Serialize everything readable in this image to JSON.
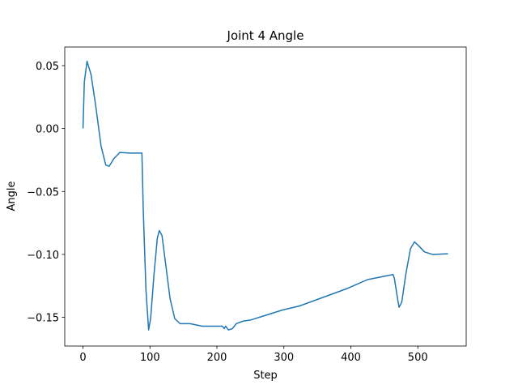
{
  "chart_data": {
    "type": "line",
    "title": "Joint 4 Angle",
    "x_label": "Step",
    "y_label": "Angle",
    "x": [
      0,
      2,
      6,
      12,
      19,
      27,
      34,
      39,
      46,
      55,
      70,
      88,
      90,
      94,
      98,
      101,
      106,
      111,
      114,
      118,
      124,
      130,
      137,
      145,
      160,
      178,
      208,
      211,
      213,
      217,
      223,
      229,
      239,
      251,
      275,
      299,
      323,
      359,
      395,
      425,
      463,
      465,
      470,
      472,
      476,
      482,
      489,
      495,
      501,
      510,
      522,
      545
    ],
    "series": [
      {
        "name": "Joint 4 Angle",
        "color": "#1f77b4",
        "values": [
          0,
          0.037,
          0.0535,
          0.043,
          0.018,
          -0.014,
          -0.029,
          -0.03,
          -0.024,
          -0.019,
          -0.0195,
          -0.0195,
          -0.065,
          -0.128,
          -0.16,
          -0.151,
          -0.116,
          -0.087,
          -0.081,
          -0.085,
          -0.11,
          -0.135,
          -0.151,
          -0.155,
          -0.155,
          -0.157,
          -0.157,
          -0.159,
          -0.157,
          -0.16,
          -0.159,
          -0.155,
          -0.153,
          -0.152,
          -0.148,
          -0.144,
          -0.141,
          -0.134,
          -0.127,
          -0.12,
          -0.116,
          -0.119,
          -0.136,
          -0.142,
          -0.138,
          -0.116,
          -0.0955,
          -0.09,
          -0.093,
          -0.098,
          -0.1,
          -0.0995
        ]
      }
    ],
    "xlim": [
      -27.25,
      572.25
    ],
    "ylim": [
      -0.1728,
      0.0648
    ],
    "xticks": [
      0,
      100,
      200,
      300,
      400,
      500
    ],
    "yticks": [
      {
        "value": 0.05,
        "label": "0.05"
      },
      {
        "value": 0,
        "label": "0.00"
      },
      {
        "value": -0.05,
        "label": "−0.05"
      },
      {
        "value": -0.1,
        "label": "−0.10"
      },
      {
        "value": -0.15,
        "label": "−0.15"
      }
    ],
    "grid": false
  }
}
